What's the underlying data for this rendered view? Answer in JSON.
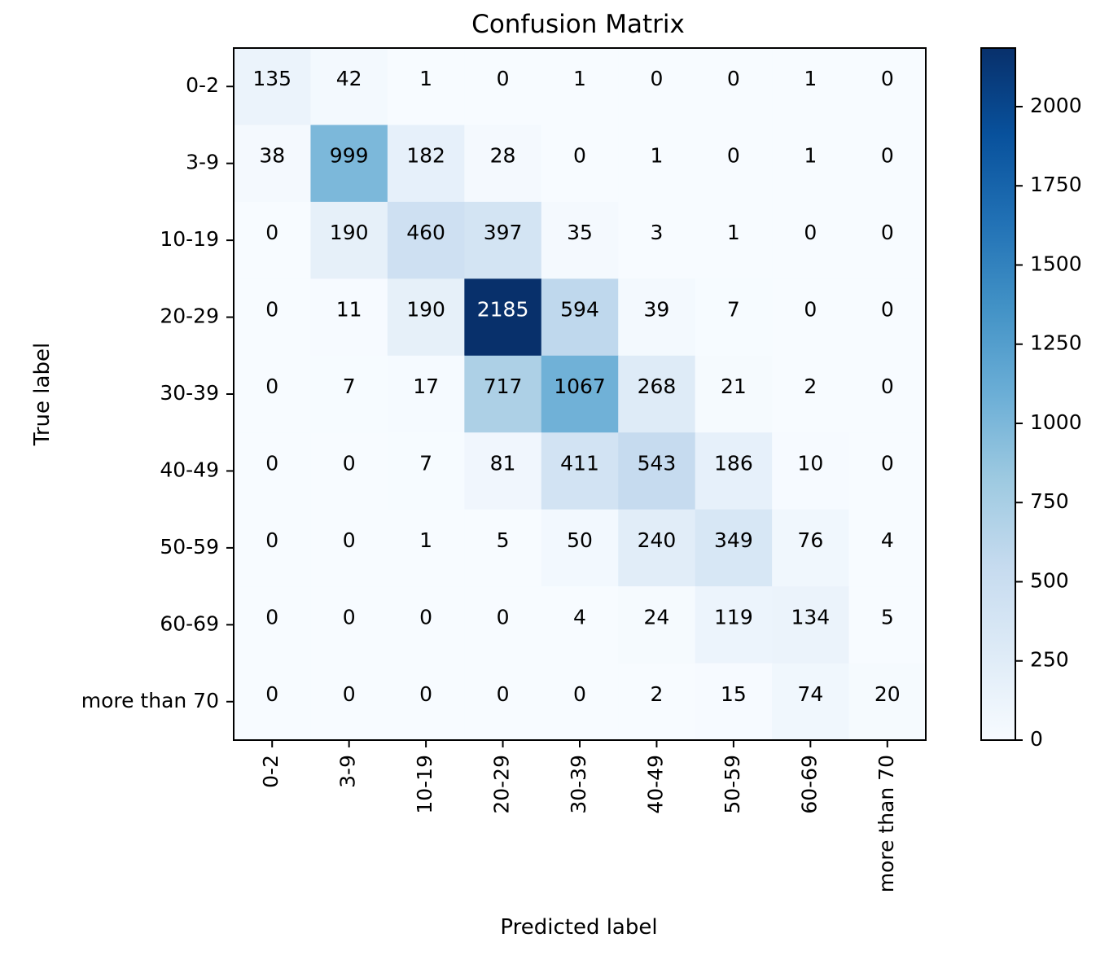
{
  "chart_data": {
    "type": "heatmap",
    "title": "Confusion Matrix",
    "xlabel": "Predicted label",
    "ylabel": "True label",
    "categories": [
      "0-2",
      "3-9",
      "10-19",
      "20-29",
      "30-39",
      "40-49",
      "50-59",
      "60-69",
      "more than 70"
    ],
    "matrix": [
      [
        135,
        42,
        1,
        0,
        1,
        0,
        0,
        1,
        0
      ],
      [
        38,
        999,
        182,
        28,
        0,
        1,
        0,
        1,
        0
      ],
      [
        0,
        190,
        460,
        397,
        35,
        3,
        1,
        0,
        0
      ],
      [
        0,
        11,
        190,
        2185,
        594,
        39,
        7,
        0,
        0
      ],
      [
        0,
        7,
        17,
        717,
        1067,
        268,
        21,
        2,
        0
      ],
      [
        0,
        0,
        7,
        81,
        411,
        543,
        186,
        10,
        0
      ],
      [
        0,
        0,
        1,
        5,
        50,
        240,
        349,
        76,
        4
      ],
      [
        0,
        0,
        0,
        0,
        4,
        24,
        119,
        134,
        5
      ],
      [
        0,
        0,
        0,
        0,
        0,
        2,
        15,
        74,
        20
      ]
    ],
    "colormap": "Blues",
    "vmin": 0,
    "vmax": 2185,
    "colorbar_ticks": [
      0,
      250,
      500,
      750,
      1000,
      1250,
      1500,
      1750,
      2000
    ]
  }
}
